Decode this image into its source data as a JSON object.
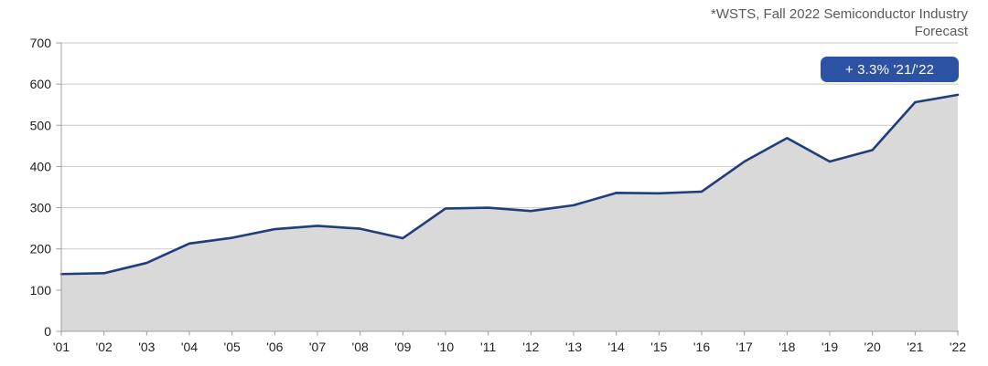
{
  "caption": {
    "line1": "*WSTS, Fall 2022 Semiconductor Industry",
    "line2": "Forecast"
  },
  "badge": {
    "label": "+ 3.3% '21/'22",
    "bg": "#2b52a3",
    "text_color": "#ffffff"
  },
  "colors": {
    "line": "#1f3e7d",
    "area": "#d9d9d9",
    "grid": "#c9cacb",
    "axis": "#9c9c9c",
    "tick_label": "#1f1f1f",
    "caption": "#58595b"
  },
  "chart_data": {
    "type": "area",
    "title": "",
    "xlabel": "",
    "ylabel": "",
    "categories": [
      "'01",
      "'02",
      "'03",
      "'04",
      "'05",
      "'06",
      "'07",
      "'08",
      "'09",
      "'10",
      "'11",
      "'12",
      "'13",
      "'14",
      "'15",
      "'16",
      "'17",
      "'18",
      "'19",
      "'20",
      "'21",
      "'22"
    ],
    "values": [
      139,
      141,
      166,
      213,
      227,
      248,
      256,
      249,
      226,
      298,
      300,
      292,
      306,
      336,
      335,
      339,
      412,
      469,
      412,
      440,
      556,
      574
    ],
    "ylim": [
      0,
      700
    ],
    "y_ticks": [
      0,
      100,
      200,
      300,
      400,
      500,
      600,
      700
    ],
    "grid": "horizontal",
    "legend": "none",
    "annotation": "+ 3.3% '21/'22",
    "source_note": "*WSTS, Fall 2022 Semiconductor Industry Forecast"
  }
}
